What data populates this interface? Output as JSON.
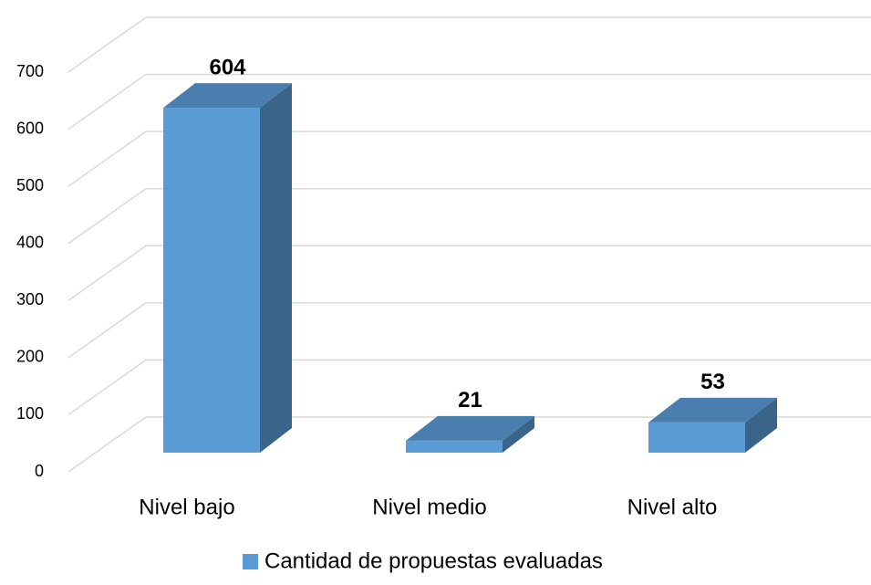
{
  "chart_data": {
    "type": "bar3d",
    "categories": [
      "Nivel bajo",
      "Nivel medio",
      "Nivel alto"
    ],
    "series": [
      {
        "name": "Cantidad de propuestas evaluadas",
        "color": "#5b9bd5",
        "values": [
          604,
          21,
          53
        ]
      }
    ],
    "ylim": [
      0,
      700
    ],
    "yticks": [
      0,
      100,
      200,
      300,
      400,
      500,
      600,
      700
    ],
    "grid": true,
    "legend": "bottom"
  }
}
